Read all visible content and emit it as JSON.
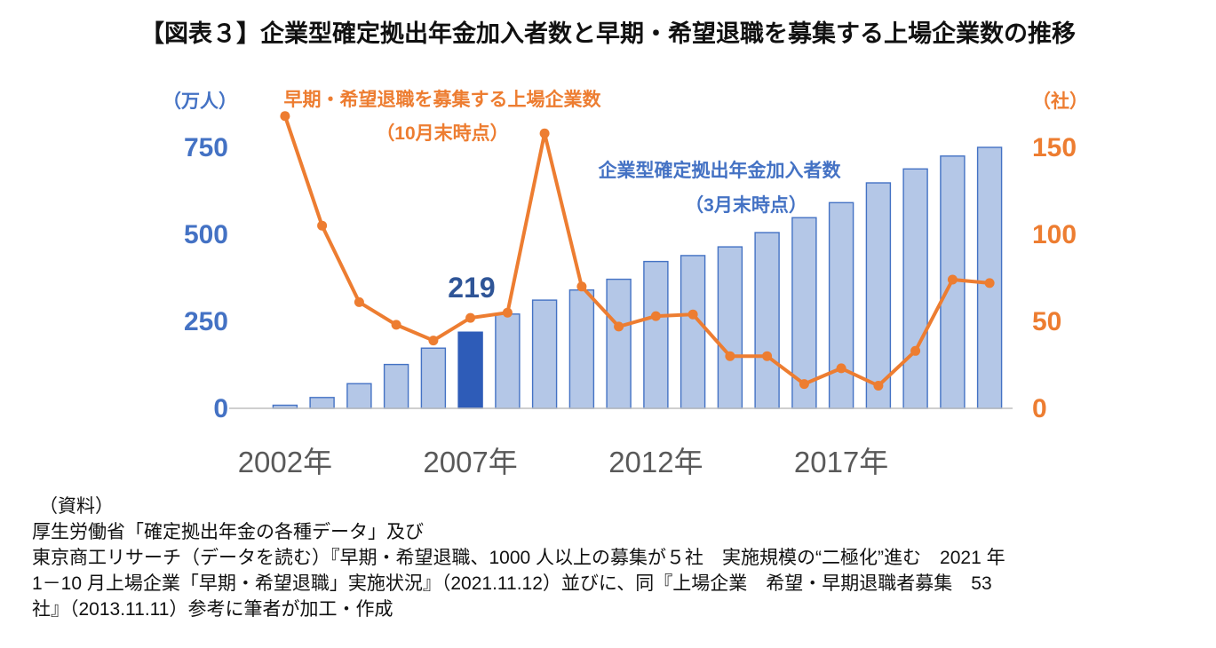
{
  "title": "【図表３】企業型確定拠出年金加入者数と早期・希望退職を募集する上場企業数の推移",
  "chart_data": {
    "type": "bar",
    "subtype": "combo-bar-line-dual-axis",
    "categories": [
      2002,
      2003,
      2004,
      2005,
      2006,
      2007,
      2008,
      2009,
      2010,
      2011,
      2012,
      2013,
      2014,
      2015,
      2016,
      2017,
      2018,
      2019,
      2020,
      2021
    ],
    "series": [
      {
        "name": "企業型確定拠出年金加入者数（3月末時点）",
        "type": "bar",
        "axis": "left",
        "unit": "万人",
        "values": [
          9,
          31,
          71,
          126,
          173,
          219,
          271,
          311,
          340,
          371,
          422,
          439,
          464,
          505,
          548,
          591,
          648,
          688,
          725,
          750
        ]
      },
      {
        "name": "早期・希望退職を募集する上場企業数（10月末時点）",
        "type": "line",
        "axis": "right",
        "unit": "社",
        "values": [
          168,
          105,
          61,
          48,
          39,
          52,
          55,
          158,
          70,
          47,
          53,
          54,
          30,
          30,
          14,
          23,
          13,
          33,
          74,
          72
        ]
      }
    ],
    "left_axis": {
      "unit_label": "（万人）",
      "ticks": [
        0,
        250,
        500,
        750
      ],
      "range": [
        0,
        750
      ]
    },
    "right_axis": {
      "unit_label": "（社）",
      "ticks": [
        0,
        50,
        100,
        150
      ],
      "range": [
        0,
        150
      ]
    },
    "x_tick_labels": [
      "2002年",
      "2007年",
      "2012年",
      "2017年"
    ],
    "x_tick_positions": [
      0,
      5,
      10,
      15
    ],
    "highlight": {
      "category": 2007,
      "index": 5,
      "label": "219"
    },
    "annotations": {
      "line_series": {
        "line1": "早期・希望退職を募集する上場企業数",
        "line2": "（10月末時点）"
      },
      "bar_series": {
        "line1": "企業型確定拠出年金加入者数",
        "line2": "（3月末時点）"
      }
    },
    "grid": false,
    "legend_position": "none",
    "colors": {
      "bar_fill": "#B4C7E7",
      "bar_border": "#4472C4",
      "bar_highlight": "#2E5CB8",
      "line": "#ED7D31",
      "axis_left": "#4472C4",
      "axis_right": "#ED7D31",
      "x_labels": "#595959",
      "axis_line": "#BFBFBF",
      "highlight_label": "#2F5597"
    }
  },
  "source": {
    "lines": [
      "（資料）",
      "厚生労働省「確定拠出年金の各種データ」及び",
      "東京商工リサーチ（データを読む）『早期・希望退職、1000 人以上の募集が５社　実施規模の“二極化”進む　2021 年",
      "1－10 月上場企業「早期・希望退職」実施状況』（2021.11.12）並びに、同『上場企業　希望・早期退職者募集　53",
      "社』（2013.11.11）参考に筆者が加工・作成"
    ]
  }
}
